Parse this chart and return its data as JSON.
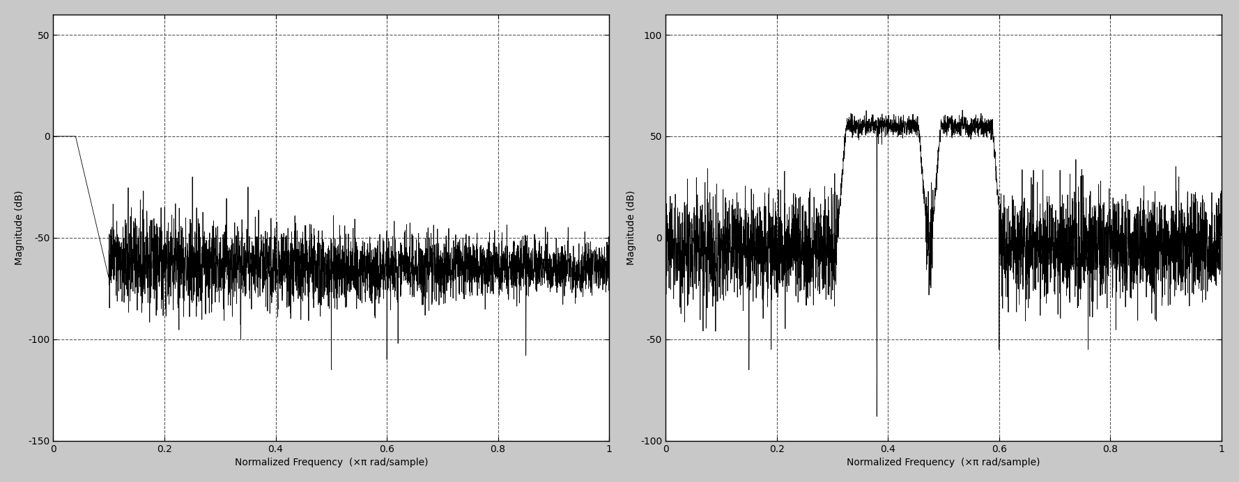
{
  "fig_width": 17.78,
  "fig_height": 6.93,
  "background_color": "#c8c8c8",
  "plot1": {
    "ylim": [
      -150,
      60
    ],
    "xlim": [
      0,
      1
    ],
    "yticks": [
      -150,
      -100,
      -50,
      0,
      50
    ],
    "xticks": [
      0,
      0.2,
      0.4,
      0.6,
      0.8,
      1
    ],
    "xtick_labels": [
      "0",
      "0.2",
      "0.4",
      "0.6",
      "0.8",
      "1"
    ],
    "xlabel": "Normalized Frequency  (×π rad/sample)",
    "ylabel": "Magnitude (dB)",
    "line_color": "#000000",
    "facecolor": "#ffffff"
  },
  "plot2": {
    "ylim": [
      -100,
      110
    ],
    "xlim": [
      0,
      1
    ],
    "yticks": [
      -100,
      -50,
      0,
      50,
      100
    ],
    "xticks": [
      0,
      0.2,
      0.4,
      0.6,
      0.8,
      1
    ],
    "xtick_labels": [
      "0",
      "0.2",
      "0.4",
      "0.6",
      "0.8",
      "1"
    ],
    "xlabel": "Normalized Frequency  (×π rad/sample)",
    "ylabel": "Magnitude (dB)",
    "line_color": "#000000",
    "facecolor": "#ffffff"
  }
}
